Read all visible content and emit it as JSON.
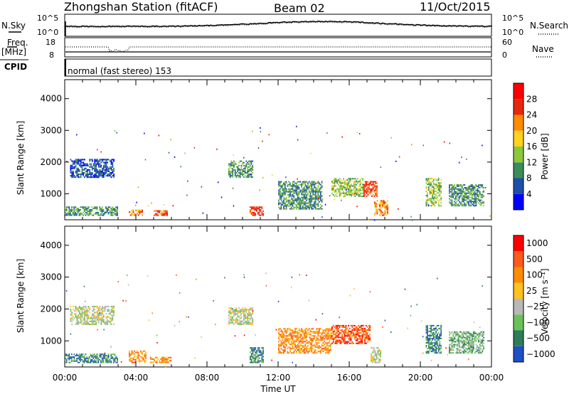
{
  "header": {
    "station": "Zhongshan Station (fitACF)",
    "beam": "Beam 02",
    "date": "11/Oct/2015"
  },
  "strips": {
    "nsky_label": "N.Sky",
    "nsearch_label": "N.Search",
    "noise_ticks": [
      "10^5",
      "10^0"
    ],
    "freq_label": "Freq.",
    "freq_unit": "[MHz]",
    "freq_ticks": [
      "18",
      "8"
    ],
    "nave_label": "Nave",
    "nave_ticks": [
      "60",
      "0"
    ],
    "cpid_label": "CPID",
    "cpid_text": "normal (fast stereo) 153"
  },
  "chart_data": [
    {
      "type": "heatmap",
      "name": "power",
      "ylabel": "Slant Range [km]",
      "yticks": [
        "1000",
        "2000",
        "3000",
        "4000"
      ],
      "ylim": [
        180,
        4600
      ],
      "xlim": [
        0,
        24
      ],
      "xtick_labels": [
        "00:00",
        "04:00",
        "08:00",
        "12:00",
        "16:00",
        "20:00",
        "00:00"
      ],
      "colorbar": {
        "label": "Power [dB]",
        "ticks": [
          "4",
          "8",
          "12",
          "16",
          "20",
          "24",
          "28"
        ],
        "colors": [
          "#0000ff",
          "#1e4fa8",
          "#3c8c5a",
          "#8cc83c",
          "#ffd21e",
          "#ff8c00",
          "#e62810",
          "#ff0000"
        ]
      },
      "regions": [
        {
          "t": [
            0.0,
            3.0
          ],
          "r": [
            300,
            600
          ],
          "level": 2
        },
        {
          "t": [
            0.3,
            2.8
          ],
          "r": [
            1500,
            2100
          ],
          "level": 1
        },
        {
          "t": [
            3.6,
            4.4
          ],
          "r": [
            300,
            500
          ],
          "level": 5
        },
        {
          "t": [
            5.0,
            5.8
          ],
          "r": [
            300,
            480
          ],
          "level": 6
        },
        {
          "t": [
            9.2,
            10.6
          ],
          "r": [
            1500,
            2050
          ],
          "level": 2
        },
        {
          "t": [
            10.4,
            11.2
          ],
          "r": [
            300,
            600
          ],
          "level": 6
        },
        {
          "t": [
            12.0,
            14.5
          ],
          "r": [
            500,
            1400
          ],
          "level": 2
        },
        {
          "t": [
            15.0,
            16.8
          ],
          "r": [
            900,
            1500
          ],
          "level": 3
        },
        {
          "t": [
            16.8,
            17.6
          ],
          "r": [
            900,
            1400
          ],
          "level": 6
        },
        {
          "t": [
            17.4,
            18.2
          ],
          "r": [
            300,
            800
          ],
          "level": 5
        },
        {
          "t": [
            20.3,
            21.2
          ],
          "r": [
            600,
            1500
          ],
          "level": 3
        },
        {
          "t": [
            21.6,
            23.6
          ],
          "r": [
            600,
            1300
          ],
          "level": 2
        }
      ]
    },
    {
      "type": "heatmap",
      "name": "velocity",
      "ylabel": "Slant Range [km]",
      "yticks": [
        "1000",
        "2000",
        "3000",
        "4000"
      ],
      "ylim": [
        180,
        4600
      ],
      "xlim": [
        0,
        24
      ],
      "xtick_labels": [
        "00:00",
        "04:00",
        "08:00",
        "12:00",
        "16:00",
        "20:00",
        "00:00"
      ],
      "xlabel": "Time UT",
      "colorbar": {
        "label": "Velocity [m s⁻¹]",
        "ticks": [
          "1000",
          "500",
          "100",
          "25",
          "−25",
          "−100",
          "−500",
          "−1000"
        ],
        "colors": [
          "#1e4fc8",
          "#2e7d5a",
          "#6cc05a",
          "#b8b8b8",
          "#ffc21e",
          "#ff8c00",
          "#ff5a1e",
          "#ff0000"
        ]
      },
      "regions": [
        {
          "t": [
            0.0,
            3.0
          ],
          "r": [
            300,
            600
          ],
          "level": 1
        },
        {
          "t": [
            0.3,
            2.8
          ],
          "r": [
            1500,
            2100
          ],
          "level": 3
        },
        {
          "t": [
            3.6,
            4.6
          ],
          "r": [
            300,
            700
          ],
          "level": 5
        },
        {
          "t": [
            4.8,
            6.0
          ],
          "r": [
            300,
            500
          ],
          "level": 5
        },
        {
          "t": [
            9.2,
            10.6
          ],
          "r": [
            1500,
            2050
          ],
          "level": 3
        },
        {
          "t": [
            10.4,
            11.2
          ],
          "r": [
            300,
            800
          ],
          "level": 1
        },
        {
          "t": [
            12.0,
            15.0
          ],
          "r": [
            600,
            1400
          ],
          "level": 5
        },
        {
          "t": [
            15.0,
            17.2
          ],
          "r": [
            900,
            1500
          ],
          "level": 6
        },
        {
          "t": [
            17.2,
            17.8
          ],
          "r": [
            300,
            800
          ],
          "level": 3
        },
        {
          "t": [
            20.3,
            21.2
          ],
          "r": [
            600,
            1500
          ],
          "level": 1
        },
        {
          "t": [
            21.6,
            23.6
          ],
          "r": [
            600,
            1300
          ],
          "level": 2
        }
      ]
    }
  ]
}
